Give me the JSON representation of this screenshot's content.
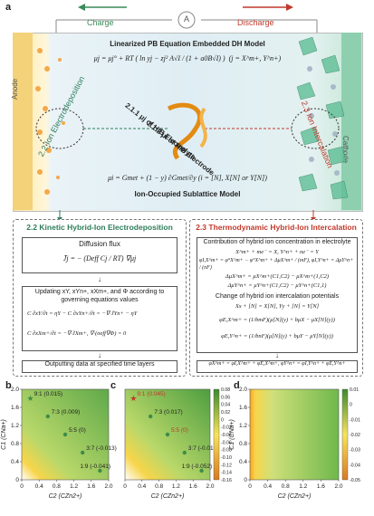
{
  "panel_a": {
    "label": "a",
    "charge": "Charge",
    "discharge": "Discharge",
    "ammeter": "A",
    "anode": "Anode",
    "cathode": "Cathode",
    "top_title": "Linearized PB Equation Embedded DH Model",
    "top_eq_main": "μj = μj° + RT ( ln yj − zj² A√I / (1 + a0B√I) )",
    "top_eq_cond": "(j = X^m+, Y^n+)",
    "bottom_eq": "μi = Gmet + (1 − y) ∂Gmet/∂y  (i = [N], X[N] or Y[N])",
    "bottom_title": "Ion-Occupied Sublattice Model",
    "left_arc": "2.2 Ion Electrodeposition",
    "right_arc": "2.3 Ion Intercalation",
    "center1": "2.1.1 μj of HIB Electrolyte",
    "center2": "2.1.2 μi of HIB Electrode"
  },
  "panel_22": {
    "header": "2.2 Kinetic Hybrid-Ion Electrodeposition",
    "flux_title": "Diffusion flux",
    "flux_eq": "J̄j = − (Deff Cj / RT) ∇μj",
    "update": "Updating xY, xYn+, xXm+, and Φ according to governing equations values",
    "gov1": "C ∂xY/∂t = ηY − C ∂xYn+/∂t = −∇·J̄Yn+ − ηY",
    "gov2": "C ∂xXm+/∂t = −∇·J̄Xm+, ∇·(σeff∇Φ) = 0",
    "output": "Outputting data at specified time layers"
  },
  "panel_23": {
    "header": "2.3 Thermodynamic Hybrid-Ion Intercalation",
    "contrib": "Contribution of hybrid ion concentration in electrolyte",
    "react": "X^m+ + me⁻ = X, Y^n+ + ne⁻ = Y",
    "l1": "φI,X^m+ = φ°X^m+ − φ°X^m+ + ΔμX^m+ / (mF), φI,Y^n+ = ΔμY^n+ / (nF)",
    "l2": "ΔμX^m+ = μX^m+(C1,C2) − μX^m+(1,C2)",
    "l3": "ΔμY^n+ = μY^n+(C1,C2) − μY^n+(C1,1)",
    "change": "Change of hybrid ion intercalation potentials",
    "react2": "Xx + [N] = X[N], Yy + [N] = Y[N]",
    "l4": "φE,X^m+ = (1/bmF)(μ[N](y) + bμX − μX[N](y))",
    "l5": "φE,Y^n+ = (1/bnF)(μ[N](y) + bμY − μY[N](y))",
    "sum": "φX^m+ = φI,X^m+ + φE,X^m+, φY^n+ = φI,Y^n+ + φE,Y^n+"
  },
  "chart_data": [
    {
      "type": "heatmap",
      "label": "b",
      "xlabel": "C2 (CZn2+)",
      "ylabel": "C1 (CNa+)",
      "xlim": [
        0,
        2.0
      ],
      "ylim": [
        0,
        2.0
      ],
      "xticks": [
        "0",
        "0.4",
        "0.8",
        "1.2",
        "1.6",
        "2.0"
      ],
      "yticks": [
        "0",
        "0.4",
        "0.8",
        "1.2",
        "1.6",
        "2.0"
      ],
      "points": [
        {
          "label": "9:1 (0.015)",
          "x": 0.2,
          "y": 1.8,
          "marker": "star"
        },
        {
          "label": "7:3 (0.009)",
          "x": 0.6,
          "y": 1.4,
          "marker": "dot"
        },
        {
          "label": "5:5 (0)",
          "x": 1.0,
          "y": 1.0,
          "marker": "dot"
        },
        {
          "label": "3:7 (-0.013)",
          "x": 1.4,
          "y": 0.6,
          "marker": "dot"
        },
        {
          "label": "1:9 (-0.041)",
          "x": 1.8,
          "y": 0.2,
          "marker": "dot"
        }
      ]
    },
    {
      "type": "heatmap",
      "label": "c",
      "xlabel": "C2 (CZn2+)",
      "xlim": [
        0,
        2.0
      ],
      "ylim": [
        0,
        2.0
      ],
      "xticks": [
        "0",
        "0.4",
        "0.8",
        "1.2",
        "1.6",
        "2.0"
      ],
      "colorbar": [
        "0.08",
        "0.06",
        "0.04",
        "0.02",
        "0",
        "-0.02",
        "-0.04",
        "-0.06",
        "-0.08",
        "-0.10",
        "-0.12",
        "-0.14",
        "-0.16"
      ],
      "points": [
        {
          "label": "9:1 (0.045)",
          "x": 0.2,
          "y": 1.8,
          "marker": "star"
        },
        {
          "label": "7:3 (0.017)",
          "x": 0.6,
          "y": 1.4,
          "marker": "dot"
        },
        {
          "label": "5:5 (0)",
          "x": 1.0,
          "y": 1.0,
          "marker": "dot"
        },
        {
          "label": "3:7 (-0.019)",
          "x": 1.4,
          "y": 0.6,
          "marker": "dot"
        },
        {
          "label": "1:9 (-0.052)",
          "x": 1.8,
          "y": 0.2,
          "marker": "dot"
        }
      ]
    },
    {
      "type": "heatmap",
      "label": "d",
      "xlabel": "C2 (CZn2+)",
      "ylabel": "C1 (CNa+)",
      "xlim": [
        0,
        2.0
      ],
      "ylim": [
        0,
        2.0
      ],
      "xticks": [
        "0",
        "0.4",
        "0.8",
        "1.2",
        "1.6",
        "2.0"
      ],
      "yticks": [
        "0",
        "0.4",
        "0.8",
        "1.2",
        "1.6",
        "2.0"
      ],
      "colorbar": [
        "0.01",
        "0",
        "-0.01",
        "-0.02",
        "-0.03",
        "-0.04",
        "-0.05"
      ]
    }
  ]
}
